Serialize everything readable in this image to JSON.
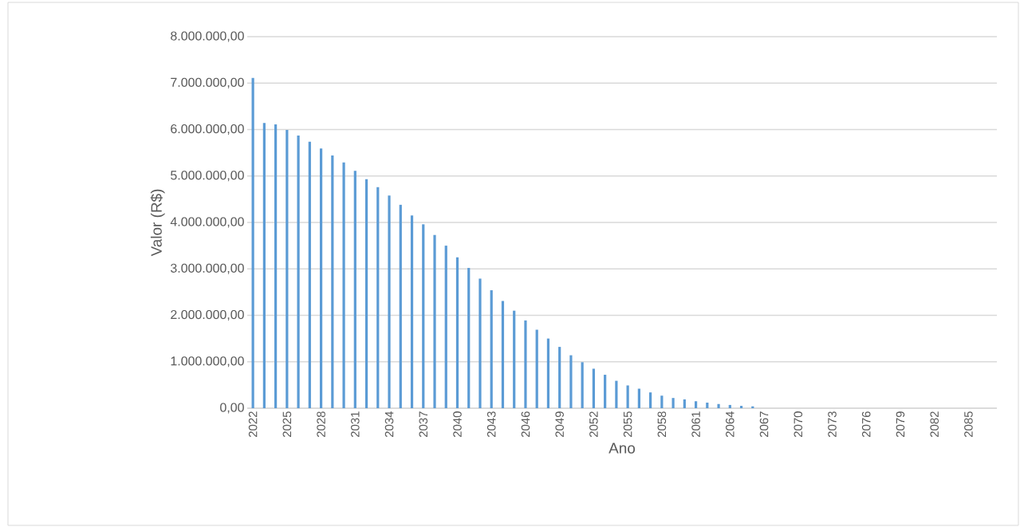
{
  "chart_data": {
    "type": "bar",
    "ylabel": "Valor (R$)",
    "xlabel": "Ano",
    "categories": [
      "2022",
      null,
      null,
      "2025",
      null,
      null,
      "2028",
      null,
      null,
      "2031",
      null,
      null,
      "2034",
      null,
      null,
      "2037",
      null,
      null,
      "2040",
      null,
      null,
      "2043",
      null,
      null,
      "2046",
      null,
      null,
      "2049",
      null,
      null,
      "2052",
      null,
      null,
      "2055",
      null,
      null,
      "2058",
      null,
      null,
      "2061",
      null,
      null,
      "2064",
      null,
      null,
      "2067",
      null,
      null,
      "2070",
      null,
      null,
      "2073",
      null,
      null,
      "2076",
      null,
      null,
      "2079",
      null,
      null,
      "2082",
      null,
      null,
      "2085",
      null,
      null
    ],
    "values": [
      7110000,
      6140000,
      6110000,
      5990000,
      5870000,
      5740000,
      5590000,
      5440000,
      5290000,
      5110000,
      4930000,
      4760000,
      4580000,
      4380000,
      4150000,
      3960000,
      3730000,
      3500000,
      3250000,
      3020000,
      2790000,
      2540000,
      2310000,
      2100000,
      1890000,
      1690000,
      1500000,
      1320000,
      1140000,
      990000,
      850000,
      720000,
      590000,
      490000,
      420000,
      340000,
      270000,
      220000,
      190000,
      150000,
      120000,
      90000,
      70000,
      50000,
      40000,
      0,
      0,
      0,
      0,
      0,
      0,
      0,
      0,
      0,
      0,
      0,
      0,
      0,
      0,
      0,
      0,
      0,
      0,
      0,
      0,
      0
    ],
    "color": "#5b9bd5",
    "ylim": [
      0,
      8000000
    ],
    "yticks": [
      {
        "value": 0,
        "label": "0,00"
      },
      {
        "value": 1000000,
        "label": "1.000.000,00"
      },
      {
        "value": 2000000,
        "label": "2.000.000,00"
      },
      {
        "value": 3000000,
        "label": "3.000.000,00"
      },
      {
        "value": 4000000,
        "label": "4.000.000,00"
      },
      {
        "value": 5000000,
        "label": "5.000.000,00"
      },
      {
        "value": 6000000,
        "label": "6.000.000,00"
      },
      {
        "value": 7000000,
        "label": "7.000.000,00"
      },
      {
        "value": 8000000,
        "label": "8.000.000,00"
      }
    ],
    "grid": "y"
  }
}
